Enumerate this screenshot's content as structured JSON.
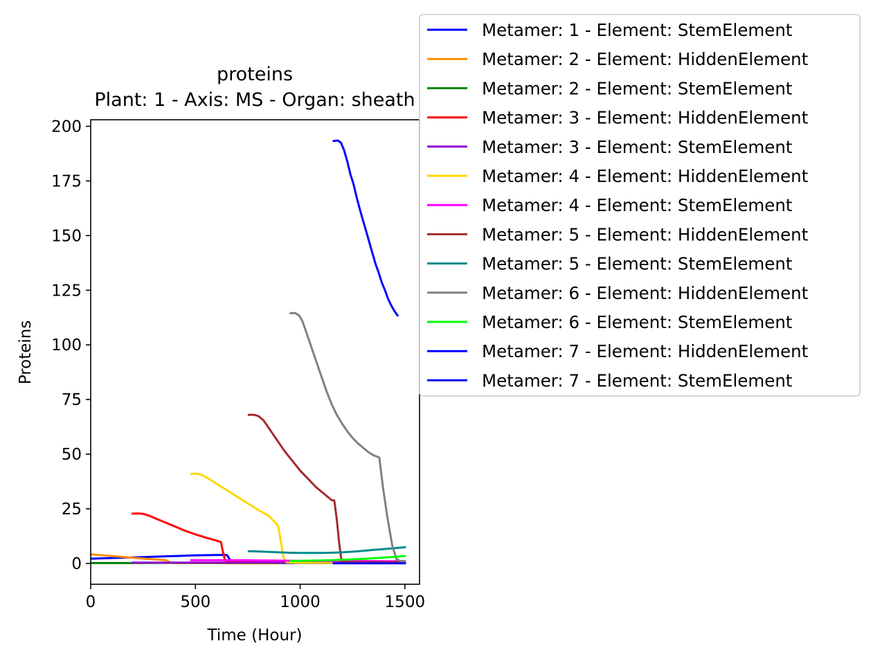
{
  "chart_data": {
    "type": "line",
    "title": "proteins",
    "subtitle": "Plant: 1 - Axis: MS - Organ: sheath",
    "xlabel": "Time (Hour)",
    "ylabel": "Proteins",
    "xlim": [
      0,
      1570
    ],
    "ylim": [
      -9.5,
      203
    ],
    "xticks": [
      0,
      500,
      1000,
      1500
    ],
    "yticks": [
      0,
      25,
      50,
      75,
      100,
      125,
      150,
      175,
      200
    ],
    "grid": false,
    "legend_position": "outside-top-right",
    "series": [
      {
        "name": "Metamer: 1 - Element: StemElement",
        "color": "#0000ff",
        "points": [
          [
            0,
            2.2
          ],
          [
            100,
            2.5
          ],
          [
            200,
            2.8
          ],
          [
            300,
            3.1
          ],
          [
            400,
            3.4
          ],
          [
            500,
            3.7
          ],
          [
            600,
            3.9
          ],
          [
            650,
            3.9
          ],
          [
            660,
            2.5
          ],
          [
            670,
            0.5
          ],
          [
            700,
            0.3
          ],
          [
            800,
            0.2
          ],
          [
            900,
            0.2
          ],
          [
            1000,
            0.2
          ],
          [
            1100,
            0.2
          ],
          [
            1200,
            0.2
          ],
          [
            1300,
            0.2
          ],
          [
            1400,
            0.2
          ],
          [
            1500,
            0.2
          ]
        ]
      },
      {
        "name": "Metamer: 2 - Element: HiddenElement",
        "color": "#ff8c00",
        "points": [
          [
            0,
            4.2
          ],
          [
            100,
            3.4
          ],
          [
            200,
            2.6
          ],
          [
            300,
            1.9
          ],
          [
            360,
            1.5
          ],
          [
            380,
            0.4
          ],
          [
            400,
            0.2
          ],
          [
            500,
            0.2
          ],
          [
            600,
            0.2
          ],
          [
            700,
            0.1
          ],
          [
            800,
            0.1
          ],
          [
            900,
            0.1
          ]
        ]
      },
      {
        "name": "Metamer: 2 - Element: StemElement",
        "color": "#008000",
        "points": [
          [
            0,
            0.2
          ],
          [
            200,
            0.2
          ],
          [
            400,
            0.3
          ],
          [
            600,
            0.3
          ],
          [
            800,
            0.3
          ],
          [
            1000,
            0.3
          ],
          [
            1200,
            0.3
          ],
          [
            1400,
            0.3
          ],
          [
            1500,
            0.3
          ]
        ]
      },
      {
        "name": "Metamer: 3 - Element: HiddenElement",
        "color": "#ff0000",
        "points": [
          [
            200,
            22.8
          ],
          [
            225,
            22.9
          ],
          [
            250,
            22.7
          ],
          [
            275,
            22.0
          ],
          [
            300,
            21.0
          ],
          [
            350,
            19.0
          ],
          [
            400,
            17.0
          ],
          [
            450,
            15.0
          ],
          [
            500,
            13.3
          ],
          [
            550,
            11.8
          ],
          [
            600,
            10.5
          ],
          [
            622,
            9.8
          ],
          [
            632,
            5.0
          ],
          [
            642,
            1.5
          ],
          [
            660,
            0.8
          ],
          [
            700,
            0.6
          ],
          [
            800,
            0.5
          ],
          [
            900,
            0.5
          ],
          [
            1000,
            0.5
          ],
          [
            1100,
            0.5
          ],
          [
            1200,
            0.5
          ],
          [
            1300,
            0.5
          ],
          [
            1400,
            0.5
          ],
          [
            1500,
            0.5
          ]
        ]
      },
      {
        "name": "Metamer: 3 - Element: StemElement",
        "color": "#9400d3",
        "points": [
          [
            200,
            0.4
          ],
          [
            400,
            0.4
          ],
          [
            600,
            0.4
          ],
          [
            800,
            0.4
          ],
          [
            1000,
            0.4
          ],
          [
            1200,
            0.4
          ],
          [
            1400,
            0.4
          ],
          [
            1500,
            0.4
          ]
        ]
      },
      {
        "name": "Metamer: 4 - Element: HiddenElement",
        "color": "#ffd700",
        "points": [
          [
            480,
            41.0
          ],
          [
            505,
            41.1
          ],
          [
            530,
            40.5
          ],
          [
            560,
            39.0
          ],
          [
            600,
            36.5
          ],
          [
            650,
            33.5
          ],
          [
            700,
            30.5
          ],
          [
            750,
            27.5
          ],
          [
            800,
            24.5
          ],
          [
            850,
            21.8
          ],
          [
            895,
            17.3
          ],
          [
            908,
            10.0
          ],
          [
            920,
            3.0
          ],
          [
            935,
            0.5
          ],
          [
            1000,
            0.3
          ],
          [
            1100,
            0.3
          ],
          [
            1150,
            0.3
          ]
        ]
      },
      {
        "name": "Metamer: 4 - Element: StemElement",
        "color": "#ff00ff",
        "points": [
          [
            480,
            1.5
          ],
          [
            600,
            1.5
          ],
          [
            700,
            1.5
          ],
          [
            800,
            1.4
          ],
          [
            900,
            1.3
          ],
          [
            1000,
            1.2
          ],
          [
            1100,
            1.2
          ],
          [
            1200,
            1.1
          ],
          [
            1300,
            1.1
          ],
          [
            1400,
            1.0
          ],
          [
            1500,
            1.0
          ]
        ]
      },
      {
        "name": "Metamer: 5 - Element: HiddenElement",
        "color": "#a52a2a",
        "points": [
          [
            755,
            68.0
          ],
          [
            780,
            68.0
          ],
          [
            800,
            67.5
          ],
          [
            825,
            65.5
          ],
          [
            850,
            62.0
          ],
          [
            875,
            58.5
          ],
          [
            900,
            55.0
          ],
          [
            925,
            51.5
          ],
          [
            950,
            48.5
          ],
          [
            975,
            45.5
          ],
          [
            1000,
            42.5
          ],
          [
            1025,
            40.0
          ],
          [
            1050,
            37.5
          ],
          [
            1075,
            35.0
          ],
          [
            1100,
            33.0
          ],
          [
            1125,
            31.0
          ],
          [
            1150,
            29.0
          ],
          [
            1163,
            28.8
          ],
          [
            1175,
            20.0
          ],
          [
            1188,
            8.0
          ],
          [
            1198,
            0.8
          ],
          [
            1250,
            0.6
          ],
          [
            1300,
            0.6
          ],
          [
            1400,
            0.6
          ],
          [
            1500,
            0.6
          ]
        ]
      },
      {
        "name": "Metamer: 5 - Element: StemElement",
        "color": "#008b8b",
        "points": [
          [
            755,
            5.6
          ],
          [
            800,
            5.5
          ],
          [
            850,
            5.3
          ],
          [
            900,
            5.1
          ],
          [
            950,
            4.9
          ],
          [
            1000,
            4.8
          ],
          [
            1050,
            4.8
          ],
          [
            1100,
            4.8
          ],
          [
            1150,
            4.9
          ],
          [
            1200,
            5.1
          ],
          [
            1250,
            5.4
          ],
          [
            1300,
            5.8
          ],
          [
            1350,
            6.2
          ],
          [
            1400,
            6.6
          ],
          [
            1450,
            7.0
          ],
          [
            1500,
            7.4
          ]
        ]
      },
      {
        "name": "Metamer: 6 - Element: HiddenElement",
        "color": "#808080",
        "points": [
          [
            955,
            114.5
          ],
          [
            975,
            114.6
          ],
          [
            995,
            113.5
          ],
          [
            1010,
            111.0
          ],
          [
            1025,
            107.0
          ],
          [
            1050,
            100.0
          ],
          [
            1075,
            93.0
          ],
          [
            1100,
            86.0
          ],
          [
            1125,
            79.0
          ],
          [
            1150,
            73.0
          ],
          [
            1175,
            68.0
          ],
          [
            1200,
            64.0
          ],
          [
            1225,
            60.5
          ],
          [
            1250,
            57.5
          ],
          [
            1275,
            55.0
          ],
          [
            1300,
            53.0
          ],
          [
            1325,
            51.0
          ],
          [
            1350,
            49.5
          ],
          [
            1378,
            48.5
          ],
          [
            1395,
            35.0
          ],
          [
            1415,
            22.0
          ],
          [
            1440,
            8.0
          ],
          [
            1460,
            2.0
          ],
          [
            1475,
            1.2
          ],
          [
            1500,
            1.0
          ]
        ]
      },
      {
        "name": "Metamer: 6 - Element: StemElement",
        "color": "#00ff00",
        "points": [
          [
            955,
            1.2
          ],
          [
            1000,
            1.2
          ],
          [
            1050,
            1.3
          ],
          [
            1100,
            1.4
          ],
          [
            1150,
            1.5
          ],
          [
            1200,
            1.7
          ],
          [
            1250,
            1.9
          ],
          [
            1300,
            2.1
          ],
          [
            1350,
            2.4
          ],
          [
            1400,
            2.7
          ],
          [
            1450,
            3.0
          ],
          [
            1500,
            3.4
          ]
        ]
      },
      {
        "name": "Metamer: 7 - Element: HiddenElement",
        "color": "#0000ff",
        "points": [
          [
            1160,
            193.3
          ],
          [
            1180,
            193.5
          ],
          [
            1195,
            192.5
          ],
          [
            1210,
            189.0
          ],
          [
            1225,
            184.0
          ],
          [
            1240,
            178.0
          ],
          [
            1255,
            173.5
          ],
          [
            1270,
            167.5
          ],
          [
            1285,
            162.0
          ],
          [
            1300,
            157.0
          ],
          [
            1315,
            152.0
          ],
          [
            1330,
            147.0
          ],
          [
            1345,
            142.0
          ],
          [
            1360,
            137.0
          ],
          [
            1375,
            133.0
          ],
          [
            1390,
            128.5
          ],
          [
            1405,
            125.0
          ],
          [
            1420,
            121.0
          ],
          [
            1435,
            118.0
          ],
          [
            1450,
            115.5
          ],
          [
            1465,
            113.5
          ]
        ]
      },
      {
        "name": "Metamer: 7 - Element: StemElement",
        "color": "#0000ff",
        "points": [
          [
            1160,
            0.1
          ],
          [
            1200,
            0.1
          ],
          [
            1300,
            0.1
          ],
          [
            1400,
            0.1
          ],
          [
            1500,
            0.1
          ]
        ]
      }
    ]
  }
}
